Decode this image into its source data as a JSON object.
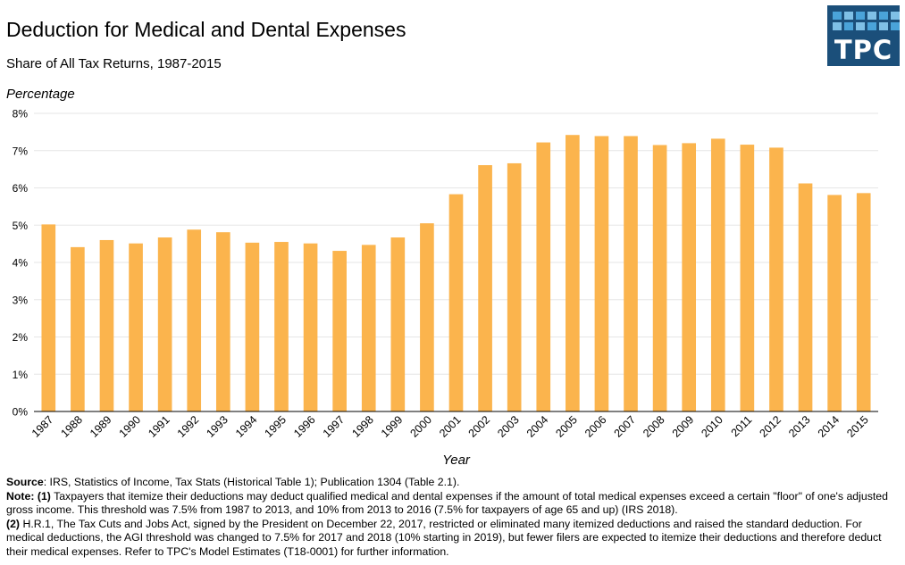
{
  "header": {
    "title": "Deduction for Medical and Dental Expenses",
    "subtitle": "Share of All Tax Returns, 1987-2015"
  },
  "logo": {
    "text": "TPC"
  },
  "colors": {
    "bar": "#fbb44d",
    "gridline": "#e6e6e6",
    "logo_bg": "#1b4f7a"
  },
  "chart_data": {
    "type": "bar",
    "title": "Deduction for Medical and Dental Expenses",
    "ylabel": "Percentage",
    "xlabel": "Year",
    "ylim": [
      0,
      8
    ],
    "yticks": [
      0,
      1,
      2,
      3,
      4,
      5,
      6,
      7,
      8
    ],
    "ytick_labels": [
      "0%",
      "1%",
      "2%",
      "3%",
      "4%",
      "5%",
      "6%",
      "7%",
      "8%"
    ],
    "grid": true,
    "categories": [
      "1987",
      "1988",
      "1989",
      "1990",
      "1991",
      "1992",
      "1993",
      "1994",
      "1995",
      "1996",
      "1997",
      "1998",
      "1999",
      "2000",
      "2001",
      "2002",
      "2003",
      "2004",
      "2005",
      "2006",
      "2007",
      "2008",
      "2009",
      "2010",
      "2011",
      "2012",
      "2013",
      "2014",
      "2015"
    ],
    "series": [
      {
        "name": "Share of All Tax Returns",
        "values": [
          5.02,
          4.41,
          4.6,
          4.51,
          4.67,
          4.88,
          4.81,
          4.53,
          4.55,
          4.51,
          4.31,
          4.47,
          4.67,
          5.05,
          5.83,
          6.61,
          6.66,
          7.22,
          7.42,
          7.39,
          7.39,
          7.15,
          7.2,
          7.32,
          7.16,
          7.08,
          6.12,
          5.81,
          5.86
        ]
      }
    ]
  },
  "footer": {
    "source_label": "Source",
    "source_text": ": IRS, Statistics of Income, Tax Stats (Historical Table 1); Publication 1304 (Table 2.1).",
    "note_label": "Note:",
    "note1_marker": "(1)",
    "note1_text": " Taxpayers that itemize their deductions may deduct qualified medical and dental expenses if the amount of total medical expenses exceed a certain \"floor\" of one's adjusted gross income. This threshold was 7.5% from 1987 to 2013, and 10% from 2013 to 2016 (7.5% for taxpayers of age 65 and up) (IRS 2018).",
    "note2_marker": "(2)",
    "note2_text": " H.R.1, The Tax Cuts and Jobs Act, signed by the President on December 22, 2017, restricted or eliminated many itemized deductions and raised the standard deduction. For medical deductions, the AGI threshold was changed to 7.5% for 2017 and 2018 (10% starting in 2019), but fewer filers are expected to itemize their deductions and therefore deduct their medical expenses. Refer to TPC's Model Estimates (T18-0001) for further information."
  }
}
